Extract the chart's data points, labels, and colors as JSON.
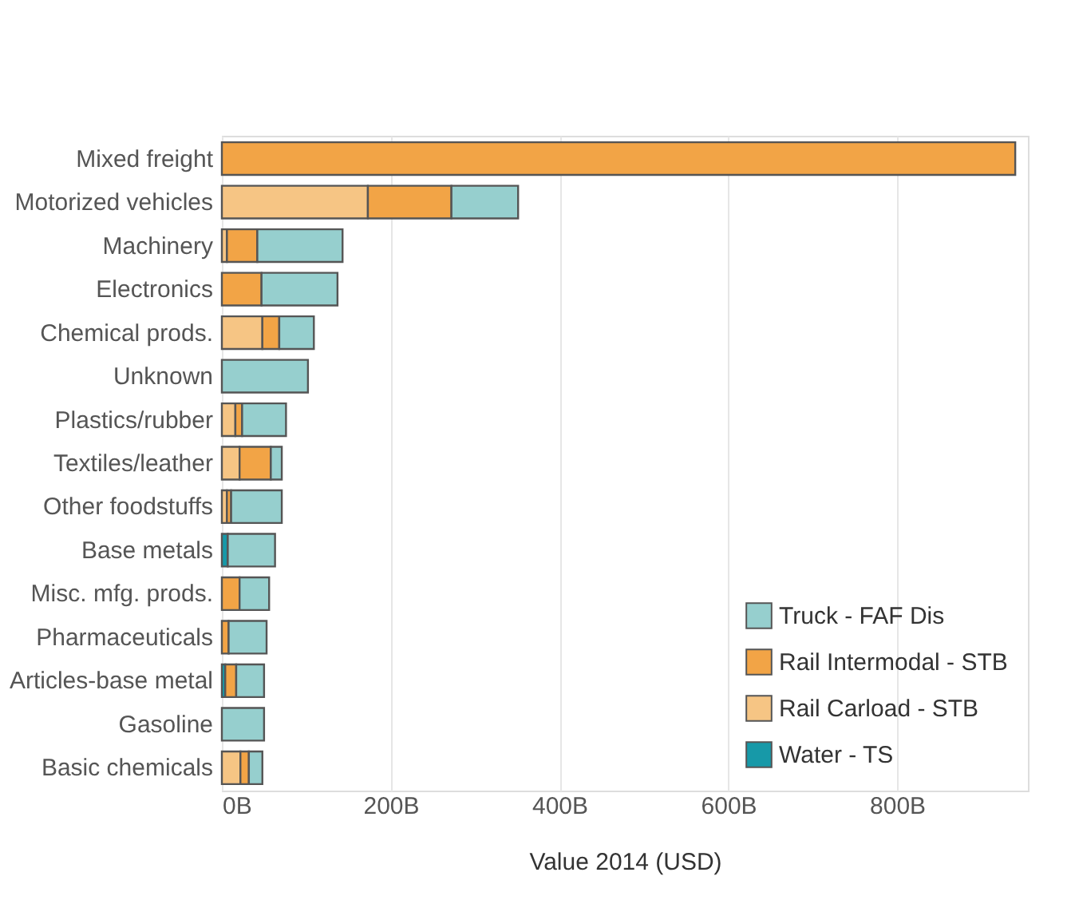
{
  "chart_data": {
    "type": "bar",
    "orientation": "horizontal",
    "stacked": true,
    "xlabel": "Value 2014 (USD)",
    "categories": [
      "Mixed freight",
      "Motorized vehicles",
      "Machinery",
      "Electronics",
      "Chemical prods.",
      "Unknown",
      "Plastics/rubber",
      "Textiles/leather",
      "Other foodstuffs",
      "Base metals",
      "Misc. mfg. prods.",
      "Pharmaceuticals",
      "Articles-base metal",
      "Gasoline",
      "Basic chemicals"
    ],
    "series": [
      {
        "name": "Water - TS",
        "color": "#1799a8",
        "values": [
          null,
          null,
          null,
          null,
          null,
          null,
          null,
          null,
          null,
          7,
          null,
          null,
          4,
          null,
          null
        ]
      },
      {
        "name": "Rail Carload - STB",
        "color": "#f6c584",
        "values": [
          null,
          173,
          6,
          null,
          48,
          null,
          16,
          21,
          6,
          null,
          null,
          null,
          null,
          null,
          22
        ]
      },
      {
        "name": "Rail Intermodal - STB",
        "color": "#f2a446",
        "values": [
          940,
          99,
          36,
          47,
          20,
          null,
          8,
          37,
          5,
          null,
          21,
          8,
          13,
          null,
          10
        ]
      },
      {
        "name": "Truck - FAF Dis",
        "color": "#96cfce",
        "values": [
          null,
          79,
          101,
          90,
          41,
          102,
          52,
          13,
          60,
          56,
          35,
          45,
          33,
          50,
          16
        ]
      }
    ],
    "xlim": [
      0,
      955
    ],
    "xticks": [
      {
        "value": 0,
        "label": "0B"
      },
      {
        "value": 200,
        "label": "200B"
      },
      {
        "value": 400,
        "label": "400B"
      },
      {
        "value": 600,
        "label": "600B"
      },
      {
        "value": 800,
        "label": "800B"
      }
    ],
    "grid": "x",
    "legend": "bottom right"
  }
}
